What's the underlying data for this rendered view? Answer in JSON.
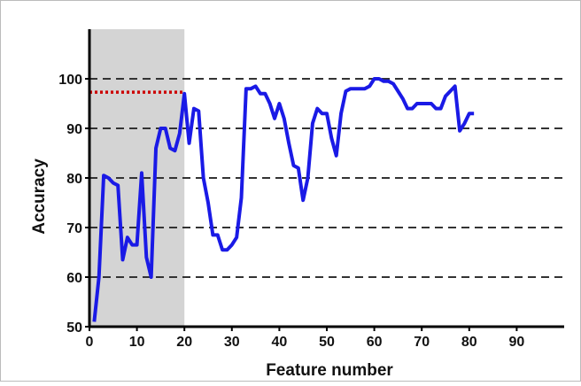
{
  "chart_data": {
    "type": "line",
    "xlabel": "Feature number",
    "ylabel": "Accuracy",
    "x": [
      1,
      2,
      3,
      4,
      5,
      6,
      7,
      8,
      9,
      10,
      11,
      12,
      13,
      14,
      15,
      16,
      17,
      18,
      19,
      20,
      21,
      22,
      23,
      24,
      25,
      26,
      27,
      28,
      29,
      30,
      31,
      32,
      33,
      34,
      35,
      36,
      37,
      38,
      39,
      40,
      41,
      42,
      43,
      44,
      45,
      46,
      47,
      48,
      49,
      50,
      51,
      52,
      53,
      54,
      55,
      56,
      57,
      58,
      59,
      60,
      61,
      62,
      63,
      64,
      65,
      66,
      67,
      68,
      69,
      70,
      71,
      72,
      73,
      74,
      75,
      76,
      77,
      78,
      79,
      80,
      81
    ],
    "series": [
      {
        "color": "#1a1ae6",
        "values": [
          51,
          60,
          80.5,
          80,
          79,
          78.5,
          63.5,
          68,
          66.5,
          66.5,
          81,
          64,
          60,
          86,
          90,
          90,
          86,
          85.5,
          89,
          97,
          87,
          94,
          93.5,
          80,
          75,
          68.5,
          68.5,
          65.5,
          65.5,
          66.5,
          68,
          76,
          98,
          98,
          98.5,
          97,
          97,
          95,
          92,
          95,
          92,
          87,
          82.5,
          82,
          75.5,
          80,
          91,
          94,
          93,
          93,
          88,
          84.5,
          93,
          97.5,
          98,
          98,
          98,
          98,
          98.5,
          100,
          100,
          99.5,
          99.5,
          99,
          97.5,
          96,
          94,
          94,
          95,
          95,
          95,
          95,
          94,
          94,
          96.5,
          97.5,
          98.5,
          89.5,
          91,
          93,
          93
        ]
      }
    ],
    "xlim": [
      0,
      100
    ],
    "xticks": [
      0,
      10,
      20,
      30,
      40,
      50,
      60,
      70,
      80,
      90
    ],
    "ylim": [
      50,
      110
    ],
    "yticks": [
      50,
      60,
      70,
      80,
      90,
      100
    ],
    "grid_lines": [
      60,
      70,
      80,
      90,
      100
    ],
    "reference_line": {
      "value": 97.3,
      "x": [
        0,
        20
      ],
      "color": "#cc0000"
    },
    "shaded_span": {
      "x": [
        0,
        20
      ],
      "color": "#d4d4d4"
    }
  }
}
